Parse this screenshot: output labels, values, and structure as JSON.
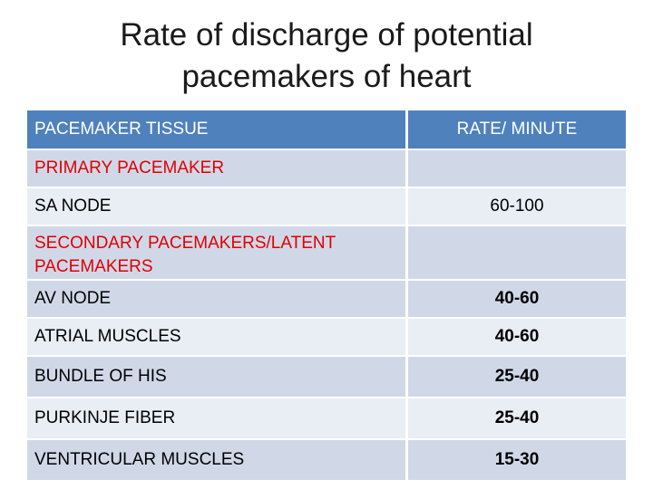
{
  "title": {
    "line1": "Rate of discharge of potential",
    "line2": "pacemakers of heart"
  },
  "table": {
    "headers": [
      "PACEMAKER TISSUE",
      "RATE/ MINUTE"
    ],
    "primary_label": "PRIMARY PACEMAKER",
    "sa_node": {
      "tissue": "SA NODE",
      "rate": "60-100"
    },
    "secondary_label": "SECONDARY PACEMAKERS/LATENT PACEMAKERS",
    "rows": [
      {
        "tissue": "AV NODE",
        "rate": "40-60"
      },
      {
        "tissue": "ATRIAL MUSCLES",
        "rate": "40-60"
      },
      {
        "tissue": "BUNDLE OF HIS",
        "rate": "25-40"
      },
      {
        "tissue": "PURKINJE FIBER",
        "rate": "25-40"
      },
      {
        "tissue": "VENTRICULAR MUSCLES",
        "rate": "15-30"
      }
    ],
    "colors": {
      "header_bg": "#4f81bd",
      "row_dark": "#d0d8e8",
      "row_light": "#e9edf4",
      "category_text": "#e00000"
    }
  }
}
